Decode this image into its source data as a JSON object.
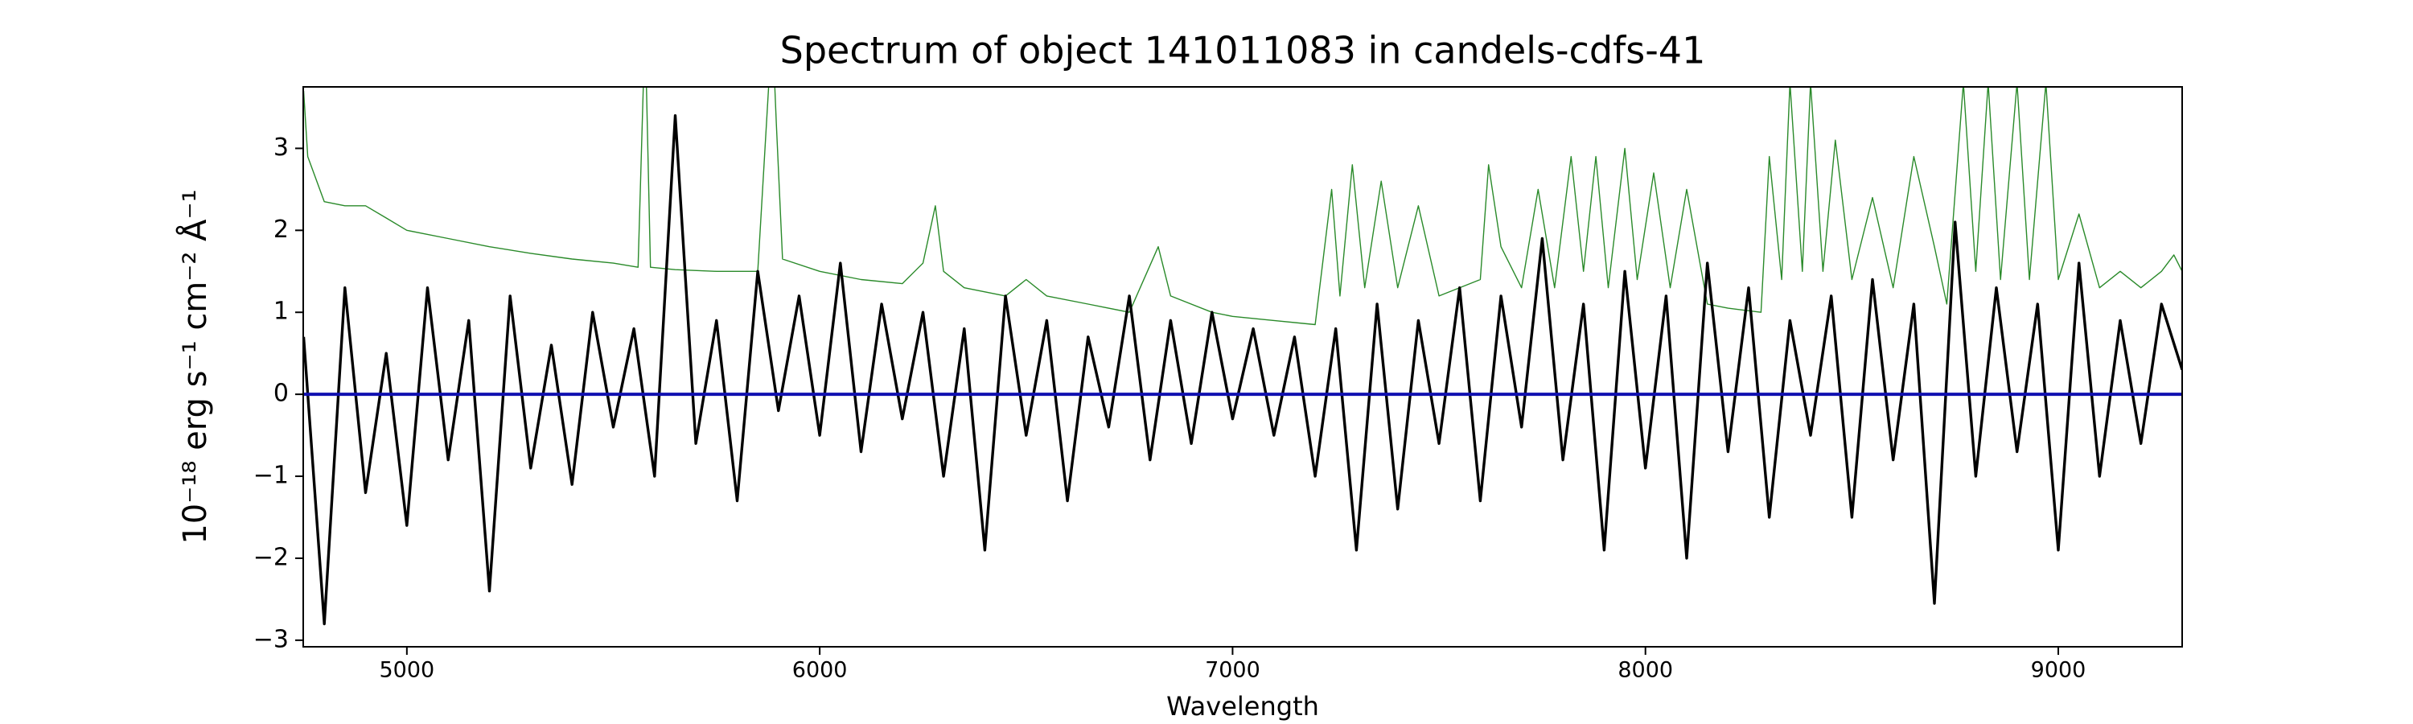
{
  "chart_data": {
    "type": "line",
    "title": "Spectrum of object 141011083 in candels-cdfs-41",
    "x_label": "Wavelength",
    "y_label": "10⁻¹⁸ erg s⁻¹ cm⁻² Å⁻¹",
    "xlim": [
      4749,
      9300
    ],
    "ylim": [
      -3.08,
      3.75
    ],
    "xticks": [
      5000,
      6000,
      7000,
      8000,
      9000
    ],
    "yticks": [
      {
        "value": -3,
        "label": "−3"
      },
      {
        "value": -2,
        "label": "−2"
      },
      {
        "value": -1,
        "label": "−1"
      },
      0,
      1,
      2,
      3
    ],
    "x": [
      4750,
      4800,
      4850,
      4900,
      4950,
      5000,
      5050,
      5100,
      5150,
      5200,
      5250,
      5300,
      5350,
      5400,
      5450,
      5500,
      5550,
      5600,
      5650,
      5700,
      5750,
      5800,
      5850,
      5900,
      5950,
      6000,
      6050,
      6100,
      6150,
      6200,
      6250,
      6300,
      6350,
      6400,
      6450,
      6500,
      6550,
      6600,
      6650,
      6700,
      6750,
      6800,
      6850,
      6900,
      6950,
      7000,
      7050,
      7100,
      7150,
      7200,
      7250,
      7300,
      7350,
      7400,
      7450,
      7500,
      7550,
      7600,
      7650,
      7700,
      7750,
      7800,
      7850,
      7900,
      7950,
      8000,
      8050,
      8100,
      8150,
      8200,
      8250,
      8300,
      8350,
      8400,
      8450,
      8500,
      8550,
      8600,
      8650,
      8700,
      8750,
      8800,
      8850,
      8900,
      8950,
      9000,
      9050,
      9100,
      9150,
      9200,
      9250,
      9300
    ],
    "series": [
      {
        "color": "#2a8a2a",
        "x": [
          4750,
          4760,
          4800,
          4850,
          4900,
          4950,
          5000,
          5100,
          5200,
          5300,
          5400,
          5500,
          5560,
          5577,
          5590,
          5650,
          5750,
          5850,
          5885,
          5895,
          5910,
          6000,
          6100,
          6200,
          6250,
          6280,
          6300,
          6350,
          6450,
          6500,
          6550,
          6650,
          6750,
          6820,
          6850,
          6950,
          7000,
          7100,
          7200,
          7240,
          7260,
          7290,
          7320,
          7360,
          7400,
          7450,
          7500,
          7600,
          7620,
          7650,
          7700,
          7740,
          7780,
          7820,
          7850,
          7880,
          7910,
          7950,
          7980,
          8020,
          8060,
          8100,
          8150,
          8200,
          8280,
          8300,
          8330,
          8350,
          8380,
          8400,
          8430,
          8460,
          8500,
          8550,
          8600,
          8650,
          8700,
          8730,
          8770,
          8800,
          8830,
          8860,
          8900,
          8930,
          8970,
          9000,
          9050,
          9100,
          9150,
          9200,
          9250,
          9280,
          9300
        ],
        "values": [
          3.7,
          2.9,
          2.35,
          2.3,
          2.3,
          2.15,
          2.0,
          1.9,
          1.8,
          1.72,
          1.65,
          1.6,
          1.55,
          4.5,
          1.55,
          1.52,
          1.5,
          1.5,
          4.5,
          3.3,
          1.65,
          1.5,
          1.4,
          1.35,
          1.6,
          2.3,
          1.5,
          1.3,
          1.2,
          1.4,
          1.2,
          1.1,
          1.0,
          1.8,
          1.2,
          1.0,
          0.95,
          0.9,
          0.85,
          2.5,
          1.2,
          2.8,
          1.3,
          2.6,
          1.3,
          2.3,
          1.2,
          1.4,
          2.8,
          1.8,
          1.3,
          2.5,
          1.3,
          2.9,
          1.5,
          2.9,
          1.3,
          3.0,
          1.4,
          2.7,
          1.3,
          2.5,
          1.1,
          1.05,
          1.0,
          2.9,
          1.4,
          3.8,
          1.5,
          3.8,
          1.5,
          3.1,
          1.4,
          2.4,
          1.3,
          2.9,
          1.8,
          1.1,
          3.8,
          1.5,
          3.8,
          1.4,
          3.8,
          1.4,
          3.8,
          1.4,
          2.2,
          1.3,
          1.5,
          1.3,
          1.5,
          1.7,
          1.5
        ]
      },
      {
        "color": "#000000",
        "values": [
          0.7,
          -2.8,
          1.3,
          -1.2,
          0.5,
          -1.6,
          1.3,
          -0.8,
          0.9,
          -2.4,
          1.2,
          -0.9,
          0.6,
          -1.1,
          1.0,
          -0.4,
          0.8,
          -1.0,
          3.4,
          -0.6,
          0.9,
          -1.3,
          1.5,
          -0.2,
          1.2,
          -0.5,
          1.6,
          -0.7,
          1.1,
          -0.3,
          1.0,
          -1.0,
          0.8,
          -1.9,
          1.2,
          -0.5,
          0.9,
          -1.3,
          0.7,
          -0.4,
          1.2,
          -0.8,
          0.9,
          -0.6,
          1.0,
          -0.3,
          0.8,
          -0.5,
          0.7,
          -1.0,
          0.8,
          -1.9,
          1.1,
          -1.4,
          0.9,
          -0.6,
          1.3,
          -1.3,
          1.2,
          -0.4,
          1.9,
          -0.8,
          1.1,
          -1.9,
          1.5,
          -0.9,
          1.2,
          -2.0,
          1.6,
          -0.7,
          1.3,
          -1.5,
          0.9,
          -0.5,
          1.2,
          -1.5,
          1.4,
          -0.8,
          1.1,
          -2.55,
          2.1,
          -1.0,
          1.3,
          -0.7,
          1.1,
          -1.9,
          1.6,
          -1.0,
          0.9,
          -0.6,
          1.1,
          0.3
        ]
      },
      {
        "color": "#1010b0",
        "x": [
          4749,
          9300
        ],
        "values": [
          0,
          0
        ]
      }
    ]
  }
}
